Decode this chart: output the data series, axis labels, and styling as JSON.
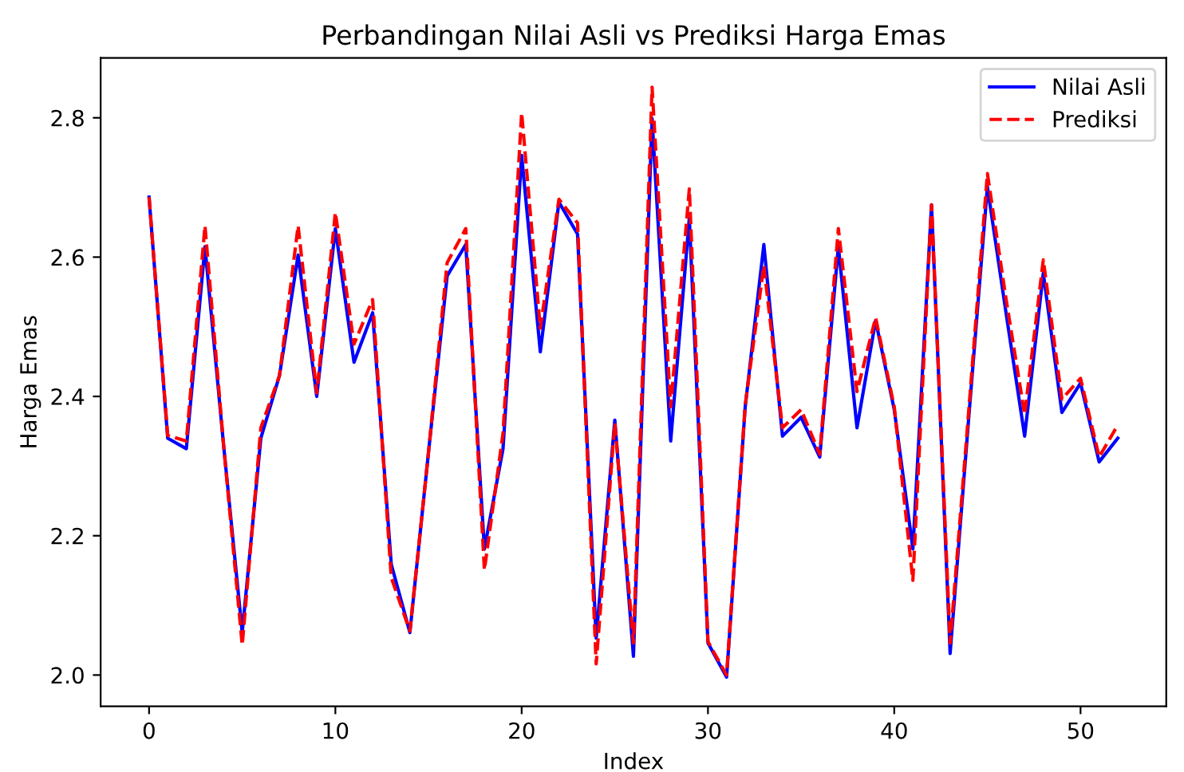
{
  "chart_data": {
    "type": "line",
    "title": "Perbandingan Nilai Asli vs Prediksi Harga Emas",
    "xlabel": "Index",
    "ylabel": "Harga Emas",
    "x": [
      0,
      1,
      2,
      3,
      4,
      5,
      6,
      7,
      8,
      9,
      10,
      11,
      12,
      13,
      14,
      15,
      16,
      17,
      18,
      19,
      20,
      21,
      22,
      23,
      24,
      25,
      26,
      27,
      28,
      29,
      30,
      31,
      32,
      33,
      34,
      35,
      36,
      37,
      38,
      39,
      40,
      41,
      42,
      43,
      44,
      45,
      46,
      47,
      48,
      49,
      50,
      51,
      52
    ],
    "series": [
      {
        "name": "Nilai Asli",
        "color": "#0000ff",
        "line_style": "solid",
        "values": [
          2.686,
          2.34,
          2.325,
          2.615,
          2.33,
          2.061,
          2.34,
          2.43,
          2.603,
          2.4,
          2.641,
          2.449,
          2.52,
          2.159,
          2.061,
          2.32,
          2.573,
          2.618,
          2.181,
          2.325,
          2.746,
          2.464,
          2.679,
          2.633,
          2.053,
          2.366,
          2.027,
          2.799,
          2.336,
          2.656,
          2.046,
          1.997,
          2.385,
          2.618,
          2.343,
          2.37,
          2.313,
          2.615,
          2.355,
          2.509,
          2.381,
          2.181,
          2.675,
          2.031,
          2.37,
          2.701,
          2.52,
          2.343,
          2.577,
          2.377,
          2.419,
          2.306,
          2.34
        ]
      },
      {
        "name": "Prediksi",
        "color": "#ff0000",
        "line_style": "dashed",
        "values": [
          2.686,
          2.344,
          2.336,
          2.645,
          2.33,
          2.043,
          2.355,
          2.43,
          2.645,
          2.405,
          2.664,
          2.475,
          2.539,
          2.14,
          2.063,
          2.32,
          2.592,
          2.641,
          2.151,
          2.347,
          2.807,
          2.498,
          2.683,
          2.649,
          2.016,
          2.362,
          2.046,
          2.844,
          2.385,
          2.698,
          2.048,
          2.0,
          2.388,
          2.588,
          2.355,
          2.381,
          2.317,
          2.641,
          2.407,
          2.513,
          2.385,
          2.136,
          2.675,
          2.046,
          2.38,
          2.72,
          2.54,
          2.374,
          2.596,
          2.396,
          2.426,
          2.313,
          2.359
        ]
      }
    ],
    "xlim": [
      -2.6,
      54.6
    ],
    "ylim": [
      1.955,
      2.886
    ],
    "xticks": [
      0,
      10,
      20,
      30,
      40,
      50
    ],
    "yticks": [
      {
        "value": 2.0,
        "label": "2.0"
      },
      {
        "value": 2.2,
        "label": "2.2"
      },
      {
        "value": 2.4,
        "label": "2.4"
      },
      {
        "value": 2.6,
        "label": "2.6"
      },
      {
        "value": 2.8,
        "label": "2.8"
      }
    ],
    "grid": false,
    "legend": "top right"
  }
}
